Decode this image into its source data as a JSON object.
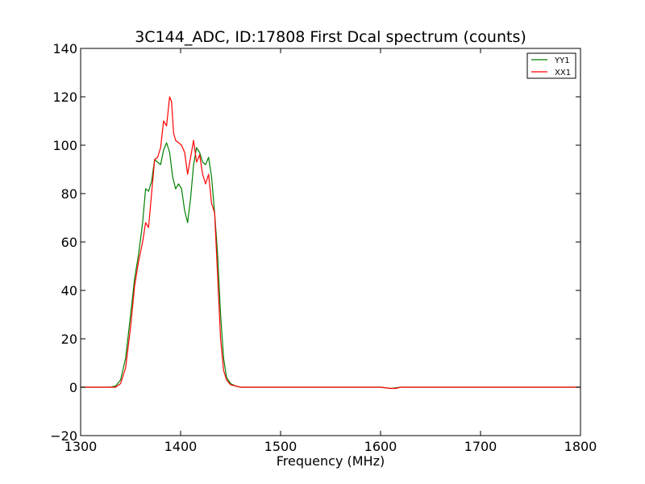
{
  "chart_data": {
    "type": "line",
    "title": "3C144_ADC, ID:17808 First Dcal spectrum (counts)",
    "xlabel": "Frequency (MHz)",
    "ylabel": "",
    "xlim": [
      1300,
      1800
    ],
    "ylim": [
      -20,
      140
    ],
    "xticks": [
      1300,
      1400,
      1500,
      1600,
      1700,
      1800
    ],
    "yticks": [
      -20,
      0,
      20,
      40,
      60,
      80,
      100,
      120,
      140
    ],
    "grid": false,
    "legend_position": "top-right",
    "series": [
      {
        "name": "YY1",
        "color": "#008000",
        "x": [
          1300,
          1320,
          1330,
          1335,
          1340,
          1345,
          1350,
          1354,
          1358,
          1362,
          1365,
          1368,
          1371,
          1374,
          1377,
          1380,
          1383,
          1386,
          1389,
          1392,
          1395,
          1398,
          1401,
          1404,
          1407,
          1410,
          1413,
          1416,
          1419,
          1422,
          1425,
          1428,
          1431,
          1434,
          1437,
          1440,
          1443,
          1446,
          1450,
          1455,
          1460,
          1470,
          1500,
          1550,
          1600,
          1610,
          1615,
          1620,
          1700,
          1800
        ],
        "y": [
          0,
          0,
          0,
          0.5,
          3,
          12,
          30,
          45,
          55,
          68,
          82,
          81,
          85,
          94,
          93,
          92,
          98,
          101,
          97,
          87,
          82,
          84,
          82,
          73,
          68,
          78,
          92,
          99,
          97,
          93,
          92,
          95,
          87,
          72,
          55,
          30,
          12,
          4,
          1.5,
          0.5,
          0,
          0,
          0,
          0,
          0,
          -0.5,
          -0.3,
          0,
          0,
          0
        ]
      },
      {
        "name": "XX1",
        "color": "#ff0000",
        "x": [
          1300,
          1320,
          1330,
          1335,
          1340,
          1345,
          1350,
          1354,
          1358,
          1362,
          1365,
          1368,
          1371,
          1374,
          1377,
          1380,
          1383,
          1386,
          1389,
          1391,
          1393,
          1395,
          1398,
          1401,
          1404,
          1407,
          1410,
          1413,
          1416,
          1419,
          1422,
          1425,
          1428,
          1431,
          1434,
          1437,
          1440,
          1443,
          1446,
          1450,
          1455,
          1460,
          1470,
          1500,
          1550,
          1600,
          1610,
          1615,
          1620,
          1700,
          1800
        ],
        "y": [
          0,
          0,
          0,
          0,
          1.5,
          8,
          25,
          42,
          52,
          60,
          68,
          66,
          80,
          94,
          95,
          99,
          110,
          108,
          120,
          118,
          105,
          102,
          101,
          100,
          97,
          88,
          95,
          102,
          93,
          96,
          88,
          84,
          88,
          76,
          72,
          46,
          20,
          7,
          3,
          1,
          0.5,
          0,
          0,
          0,
          0,
          0,
          -0.5,
          -0.5,
          0,
          0,
          0
        ]
      }
    ]
  }
}
